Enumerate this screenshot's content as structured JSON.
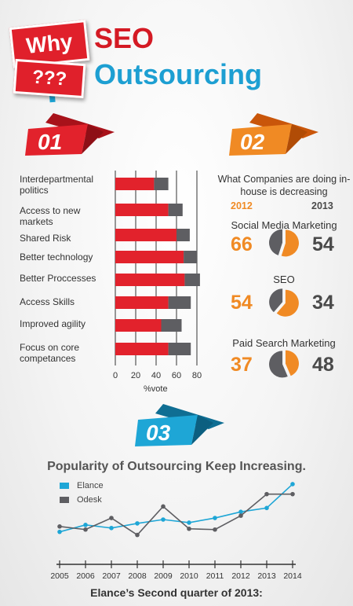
{
  "header": {
    "why": "Why",
    "question": "???",
    "title_line1": "SEO",
    "title_line2": "Outsourcing"
  },
  "badges": [
    "01",
    "02",
    "03"
  ],
  "colors": {
    "red": "#e2222c",
    "orange": "#f08a24",
    "blue": "#1ea6d6",
    "dark_gray": "#5e5e62"
  },
  "section2": {
    "heading": "What Companies are doing in-house is decreasing",
    "year_left": "2012",
    "year_right": "2013",
    "items": [
      {
        "label": "Social Media Marketing",
        "v2012": "66",
        "v2013": "54"
      },
      {
        "label": "SEO",
        "v2012": "54",
        "v2013": "34"
      },
      {
        "label": "Paid Search Marketing",
        "v2012": "37",
        "v2013": "48"
      }
    ]
  },
  "section3": {
    "title": "Popularity of Outsourcing Keep Increasing.",
    "footer": "Elance’s Second quarter of 2013:"
  },
  "chart_data": [
    {
      "type": "bar",
      "orientation": "horizontal",
      "stacked": true,
      "categories": [
        "Interdepartmental politics",
        "Access to new markets",
        "Shared Risk",
        "Better technology",
        "Better Proccesses",
        "Access Skills",
        "Improved agility",
        "Focus on core competances"
      ],
      "series": [
        {
          "color": "#e2222c",
          "values": [
            38,
            52,
            60,
            67,
            68,
            52,
            45,
            52
          ]
        },
        {
          "color": "#5e5e62",
          "values": [
            14,
            14,
            13,
            13,
            15,
            22,
            20,
            22
          ]
        }
      ],
      "xlabel": "%vote",
      "xticks": [
        0,
        20,
        40,
        60,
        80
      ],
      "xlim": [
        0,
        80
      ],
      "grid": true
    },
    {
      "type": "pie",
      "items": [
        {
          "label": "Social Media Marketing",
          "values": [
            66,
            54
          ]
        },
        {
          "label": "SEO",
          "values": [
            54,
            34
          ]
        },
        {
          "label": "Paid Search Marketing",
          "values": [
            37,
            48
          ]
        }
      ],
      "colors": [
        "#f08a24",
        "#5e5e62"
      ]
    },
    {
      "type": "line",
      "x": [
        "2005",
        "2006",
        "2007",
        "2008",
        "2009",
        "2010",
        "2011",
        "2012",
        "2013",
        "2014"
      ],
      "series": [
        {
          "name": "Elance",
          "color": "#1ea6d6",
          "values": [
            34,
            43,
            39,
            45,
            50,
            46,
            52,
            60,
            65,
            96
          ]
        },
        {
          "name": "Odesk",
          "color": "#5e5e62",
          "values": [
            41,
            37,
            52,
            30,
            67,
            38,
            37,
            55,
            83,
            83
          ]
        }
      ],
      "ylim": [
        0,
        100
      ],
      "legend": "top-left",
      "grid": false
    }
  ]
}
